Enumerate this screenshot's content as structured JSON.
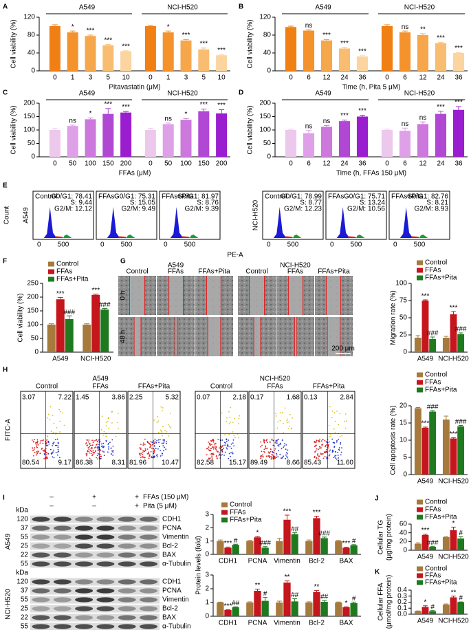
{
  "chart_data": [
    {
      "type": "dose_bar",
      "label": "A",
      "y_label": "Cell viability (%)",
      "x_label": "Pitavastatin (μM)",
      "ylim": [
        0,
        120
      ],
      "yticks": [
        0,
        40,
        80,
        120
      ],
      "colors": [
        "#f07f14",
        "#f4922c",
        "#f6a74c",
        "#f9bd72",
        "#fcd49f"
      ],
      "groups": [
        {
          "name": "A549",
          "categories": [
            "0",
            "1",
            "3",
            "5",
            "10"
          ],
          "values": [
            100,
            86,
            78,
            57,
            44
          ],
          "errors": [
            3,
            3,
            2,
            2,
            1
          ],
          "annotations": [
            null,
            "*",
            "***",
            "***",
            "***"
          ]
        },
        {
          "name": "NCI-H520",
          "categories": [
            "0",
            "1",
            "3",
            "5",
            "10"
          ],
          "values": [
            100,
            86,
            68,
            48,
            35
          ],
          "errors": [
            2,
            3,
            2,
            3,
            1
          ],
          "annotations": [
            null,
            "*",
            "***",
            "***",
            "***"
          ]
        }
      ]
    },
    {
      "type": "dose_bar",
      "label": "B",
      "y_label": "Cell viability (%)",
      "x_label": "Time (h, Pita 5 μM)",
      "ylim": [
        0,
        120
      ],
      "yticks": [
        0,
        40,
        80,
        120
      ],
      "colors": [
        "#f07f14",
        "#f4922c",
        "#f6a74c",
        "#f9bd72",
        "#fcd49f"
      ],
      "groups": [
        {
          "name": "A549",
          "categories": [
            "0",
            "6",
            "12",
            "24",
            "36"
          ],
          "values": [
            98,
            90,
            68,
            50,
            32
          ],
          "errors": [
            2,
            2,
            2,
            2,
            2
          ],
          "annotations": [
            null,
            "ns",
            "***",
            "***",
            "***"
          ]
        },
        {
          "name": "NCI-H520",
          "categories": [
            "0",
            "6",
            "12",
            "24",
            "36"
          ],
          "values": [
            100,
            86,
            80,
            62,
            40
          ],
          "errors": [
            3,
            3,
            3,
            2,
            1
          ],
          "annotations": [
            null,
            "ns",
            "**",
            "***",
            "***"
          ]
        }
      ]
    },
    {
      "type": "dose_bar",
      "label": "C",
      "y_label": "Cell viability (%)",
      "x_label": "FFAs (μM)",
      "ylim": [
        0,
        200
      ],
      "yticks": [
        0,
        50,
        100,
        150,
        200
      ],
      "colors": [
        "#ecc8ec",
        "#dea0e6",
        "#cc78dc",
        "#b048d4",
        "#9a1ed0"
      ],
      "groups": [
        {
          "name": "A549",
          "categories": [
            "0",
            "50",
            "100",
            "150",
            "200"
          ],
          "values": [
            100,
            115,
            140,
            160,
            165
          ],
          "errors": [
            5,
            3,
            5,
            20,
            4
          ],
          "annotations": [
            null,
            "ns",
            "*",
            "***",
            "***"
          ]
        },
        {
          "name": "NCI-H520",
          "categories": [
            "0",
            "50",
            "100",
            "150",
            "200"
          ],
          "values": [
            100,
            122,
            138,
            170,
            162
          ],
          "errors": [
            6,
            4,
            5,
            8,
            14
          ],
          "annotations": [
            null,
            "ns",
            "*",
            "***",
            "***"
          ]
        }
      ]
    },
    {
      "type": "dose_bar",
      "label": "D",
      "y_label": "Cell viability (%)",
      "x_label": "Time (h, FFAs 150 μM)",
      "ylim": [
        0,
        200
      ],
      "yticks": [
        0,
        50,
        100,
        150,
        200
      ],
      "colors": [
        "#ecc8ec",
        "#dea0e6",
        "#cc78dc",
        "#b048d4",
        "#9a1ed0"
      ],
      "groups": [
        {
          "name": "A549",
          "categories": [
            "0",
            "6",
            "12",
            "24",
            "36"
          ],
          "values": [
            100,
            88,
            112,
            133,
            150
          ],
          "errors": [
            3,
            10,
            5,
            4,
            5
          ],
          "annotations": [
            null,
            "ns",
            "ns",
            "***",
            "***"
          ]
        },
        {
          "name": "NCI-H520",
          "categories": [
            "0",
            "6",
            "12",
            "24",
            "36"
          ],
          "values": [
            100,
            97,
            122,
            160,
            175
          ],
          "errors": [
            3,
            10,
            8,
            10,
            12
          ],
          "annotations": [
            null,
            "ns",
            "ns",
            "***",
            "***"
          ]
        }
      ]
    },
    {
      "type": "grouped_bar",
      "label": "F",
      "y_label": "Cell viability (%)",
      "legend": "top-left",
      "ylim": [
        0,
        250
      ],
      "yticks": [
        0,
        50,
        100,
        150,
        200,
        250
      ],
      "categories": [
        "A549",
        "NCI-H520"
      ],
      "series": [
        {
          "name": "Control",
          "color": "#a57a3c",
          "values": [
            100,
            100
          ],
          "errors": [
            3,
            3
          ],
          "annotations": [
            null,
            null
          ]
        },
        {
          "name": "FFAs",
          "color": "#c4161c",
          "values": [
            192,
            208
          ],
          "errors": [
            7,
            3
          ],
          "annotations": [
            "***",
            "***"
          ]
        },
        {
          "name": "FFAs+Pita",
          "color": "#1f7a1f",
          "values": [
            120,
            155
          ],
          "errors": [
            12,
            4
          ],
          "annotations": [
            "###",
            "###"
          ]
        }
      ]
    },
    {
      "type": "grouped_bar",
      "y_label": "Migration rate (%)",
      "legend": "top-left",
      "ylim": [
        0,
        100
      ],
      "yticks": [
        0,
        25,
        50,
        75,
        100
      ],
      "categories": [
        "A549",
        "NCI-H520"
      ],
      "series": [
        {
          "name": "Control",
          "color": "#a57a3c",
          "values": [
            21,
            21
          ],
          "errors": [
            3,
            2
          ],
          "annotations": [
            null,
            null
          ]
        },
        {
          "name": "FFAs",
          "color": "#c4161c",
          "values": [
            75,
            55
          ],
          "errors": [
            1,
            4
          ],
          "annotations": [
            "***",
            "***"
          ]
        },
        {
          "name": "FFAs+Pita",
          "color": "#1f7a1f",
          "values": [
            19,
            26
          ],
          "errors": [
            3,
            2
          ],
          "annotations": [
            "###",
            "###"
          ]
        }
      ]
    },
    {
      "type": "grouped_bar",
      "y_label": "Cell apoptosis rate (%)",
      "legend": "top-left",
      "ylim": [
        0,
        20
      ],
      "yticks": [
        0,
        5,
        10,
        15,
        20
      ],
      "categories": [
        "A549",
        "NCI-H520"
      ],
      "series": [
        {
          "name": "Control",
          "color": "#a57a3c",
          "values": [
            19.3,
            16
          ],
          "errors": [
            0.2,
            1
          ],
          "annotations": [
            null,
            null
          ]
        },
        {
          "name": "FFAs",
          "color": "#c4161c",
          "values": [
            13.6,
            10.5
          ],
          "errors": [
            0.2,
            0.2
          ],
          "annotations": [
            "***",
            "***"
          ]
        },
        {
          "name": "FFAs+Pita",
          "color": "#1f7a1f",
          "values": [
            18.3,
            14
          ],
          "errors": [
            0.3,
            0.3
          ],
          "annotations": [
            "###",
            "###"
          ]
        }
      ]
    },
    {
      "type": "grouped_bar",
      "y_label": "Protein levels (fold)",
      "legend": "top-left",
      "ylim": [
        0,
        3
      ],
      "yticks": [
        0,
        1,
        2,
        3
      ],
      "categories": [
        "CDH1",
        "PCNA",
        "Vimentin",
        "Bcl-2",
        "BAX"
      ],
      "series": [
        {
          "name": "Control",
          "color": "#a57a3c",
          "values": [
            1,
            1,
            1,
            1,
            1
          ],
          "errors": [
            0.08,
            0.05,
            0.2,
            0.08,
            0.05
          ],
          "annotations": [
            null,
            null,
            null,
            null,
            null
          ]
        },
        {
          "name": "FFAs",
          "color": "#c4161c",
          "values": [
            0.5,
            1.28,
            2.6,
            2.72,
            0.5
          ],
          "errors": [
            0.05,
            0.06,
            0.35,
            0.15,
            0.04
          ],
          "annotations": [
            "***",
            "*",
            "***",
            "***",
            "***"
          ]
        },
        {
          "name": "FFAs+Pita",
          "color": "#1f7a1f",
          "values": [
            0.72,
            0.5,
            1.52,
            1.22,
            0.68
          ],
          "errors": [
            0.04,
            0.08,
            0.1,
            0.08,
            0.05
          ],
          "annotations": [
            "#",
            "###",
            "##",
            "###",
            "#"
          ]
        }
      ]
    },
    {
      "type": "grouped_bar",
      "ylim": [
        0,
        3
      ],
      "yticks": [
        0,
        1,
        2,
        3
      ],
      "categories": [
        "CDH1",
        "PCNA",
        "Vimentin",
        "Bcl-2",
        "BAX"
      ],
      "series": [
        {
          "color": "#a57a3c",
          "values": [
            1,
            1,
            1,
            1,
            1
          ],
          "errors": [
            0.03,
            0.05,
            0.1,
            0.05,
            0.04
          ],
          "annotations": [
            null,
            null,
            null,
            null,
            null
          ]
        },
        {
          "color": "#c4161c",
          "values": [
            0.45,
            1.85,
            2.45,
            1.75,
            0.65
          ],
          "errors": [
            0.03,
            0.12,
            0.12,
            0.12,
            0.04
          ],
          "annotations": [
            "***",
            "**",
            "**",
            "**",
            "*"
          ]
        },
        {
          "color": "#1f7a1f",
          "values": [
            0.65,
            1.12,
            1.08,
            1.05,
            0.95
          ],
          "errors": [
            0.04,
            0.25,
            0.2,
            0.1,
            0.08
          ],
          "annotations": [
            "##",
            "#",
            "##",
            "##",
            "#"
          ]
        }
      ]
    },
    {
      "type": "grouped_bar",
      "label": "J",
      "y_label": [
        "Cellular TG",
        "(μg/mg protein)"
      ],
      "legend": "top-left",
      "ylim": [
        0,
        60
      ],
      "yticks": [
        0,
        20,
        40,
        60
      ],
      "categories": [
        "A549",
        "NCI-H520"
      ],
      "series": [
        {
          "name": "Control",
          "color": "#a57a3c",
          "values": [
            15,
            30
          ],
          "errors": [
            2,
            1
          ],
          "annotations": [
            null,
            null
          ]
        },
        {
          "name": "FFAs",
          "color": "#c4161c",
          "values": [
            35,
            46
          ],
          "errors": [
            2,
            7
          ],
          "annotations": [
            "***",
            "*"
          ]
        },
        {
          "name": "FFAs+Pita",
          "color": "#1f7a1f",
          "values": [
            8,
            27
          ],
          "errors": [
            1,
            4
          ],
          "annotations": [
            "###",
            "#"
          ]
        }
      ]
    },
    {
      "type": "grouped_bar",
      "label": "K",
      "y_label": [
        "Cellular FFA",
        "(μmol/mg protein)"
      ],
      "legend": "top-left",
      "ylim": [
        0,
        0.4
      ],
      "yticks": [
        {
          "value": 0,
          "label": "0.0"
        },
        0.1,
        0.2,
        0.3,
        0.4
      ],
      "categories": [
        "A549",
        "NCI-H520"
      ],
      "series": [
        {
          "name": "Control",
          "color": "#a57a3c",
          "values": [
            0.05,
            0.16
          ],
          "errors": [
            0.005,
            0.01
          ],
          "annotations": [
            null,
            null
          ]
        },
        {
          "name": "FFAs",
          "color": "#c4161c",
          "values": [
            0.12,
            0.28
          ],
          "errors": [
            0.02,
            0.02
          ],
          "annotations": [
            "*",
            "**"
          ]
        },
        {
          "name": "FFAs+Pita",
          "color": "#1f7a1f",
          "values": [
            0.05,
            0.2
          ],
          "errors": [
            0.01,
            0.005
          ],
          "annotations": [
            "#",
            "#"
          ]
        }
      ]
    }
  ],
  "flow_E": {
    "label": "E",
    "y_label": "Count",
    "x_label": "PE-A",
    "x_tick_labels": [
      0,
      500
    ],
    "cell_lines": [
      {
        "name": "A549",
        "panels": [
          {
            "title": "Control",
            "stats": [
              "G0/G1: 78.41",
              "S: 9.44",
              "G2/M: 12.12"
            ]
          },
          {
            "title": "FFAs",
            "stats": [
              "G0/G1: 75.31",
              "S: 15.05",
              "G2/M: 9.49"
            ]
          },
          {
            "title": "FFAs+Pita",
            "stats": [
              "G0/G1: 81.97",
              "S: 8.76",
              "G2/M: 9.39"
            ]
          }
        ]
      },
      {
        "name": "NCI-H520",
        "panels": [
          {
            "title": "Control",
            "stats": [
              "G0/G1: 78.99",
              "S: 8.77",
              "G2/M: 12.23"
            ]
          },
          {
            "title": "FFAs",
            "stats": [
              "G0/G1: 75.71",
              "S: 13.24",
              "G2/M: 10.56"
            ]
          },
          {
            "title": "FFAs+Pita",
            "stats": [
              "G0/G1: 82.76",
              "S: 8.21",
              "G2/M: 8.93"
            ]
          }
        ]
      }
    ]
  },
  "scratch_G": {
    "label": "G",
    "cell_lines": [
      "A549",
      "NCI-H520"
    ],
    "conditions": [
      "Control",
      "FFAs",
      "FFAs+Pita"
    ],
    "times": [
      "0 h",
      "48 h"
    ],
    "scale_bar": "200 μm"
  },
  "flow_H": {
    "label": "H",
    "y_label": "FITC-A",
    "cell_lines": [
      {
        "name": "A549",
        "panels": [
          {
            "title": "Control",
            "quadrants": [
              "3.07",
              "7.22",
              "80.54",
              "9.17"
            ]
          },
          {
            "title": "FFAs",
            "quadrants": [
              "1.45",
              "3.86",
              "86.38",
              "8.31"
            ]
          },
          {
            "title": "FFAs+Pita",
            "quadrants": [
              "2.25",
              "5.32",
              "81.96",
              "10.47"
            ]
          }
        ]
      },
      {
        "name": "NCI-H520",
        "panels": [
          {
            "title": "Control",
            "quadrants": [
              "0.07",
              "2.18",
              "82.58",
              "15.17"
            ]
          },
          {
            "title": "FFAs",
            "quadrants": [
              "0.17",
              "1.68",
              "89.49",
              "8.66"
            ]
          },
          {
            "title": "FFAs+Pita",
            "quadrants": [
              "0.13",
              "2.84",
              "85.43",
              "11.60"
            ]
          }
        ]
      }
    ]
  },
  "western_I": {
    "label": "I",
    "kda_label": "kDa",
    "treatments": [
      {
        "name": "FFAs (150 μM)",
        "signs": [
          "–",
          "+",
          "+"
        ]
      },
      {
        "name": "Pita (5 μM)",
        "signs": [
          "–",
          "–",
          "+"
        ]
      }
    ],
    "cell_lines": [
      {
        "name": "A549",
        "bands": [
          {
            "kda": 120,
            "protein": "CDH1"
          },
          {
            "kda": 37,
            "protein": "PCNA"
          },
          {
            "kda": 55,
            "protein": "Vimentin"
          },
          {
            "kda": 25,
            "protein": "Bcl-2"
          },
          {
            "kda": 22,
            "protein": "BAX"
          },
          {
            "kda": 55,
            "protein": "α-Tubulin"
          }
        ]
      },
      {
        "name": "NCI-H520",
        "bands": [
          {
            "kda": 120,
            "protein": "CDH1"
          },
          {
            "kda": 37,
            "protein": "PCNA"
          },
          {
            "kda": 55,
            "protein": "Vimentin"
          },
          {
            "kda": 25,
            "protein": "Bcl-2"
          },
          {
            "kda": 22,
            "protein": "BAX"
          },
          {
            "kda": 55,
            "protein": "α-Tubulin"
          }
        ]
      }
    ]
  }
}
